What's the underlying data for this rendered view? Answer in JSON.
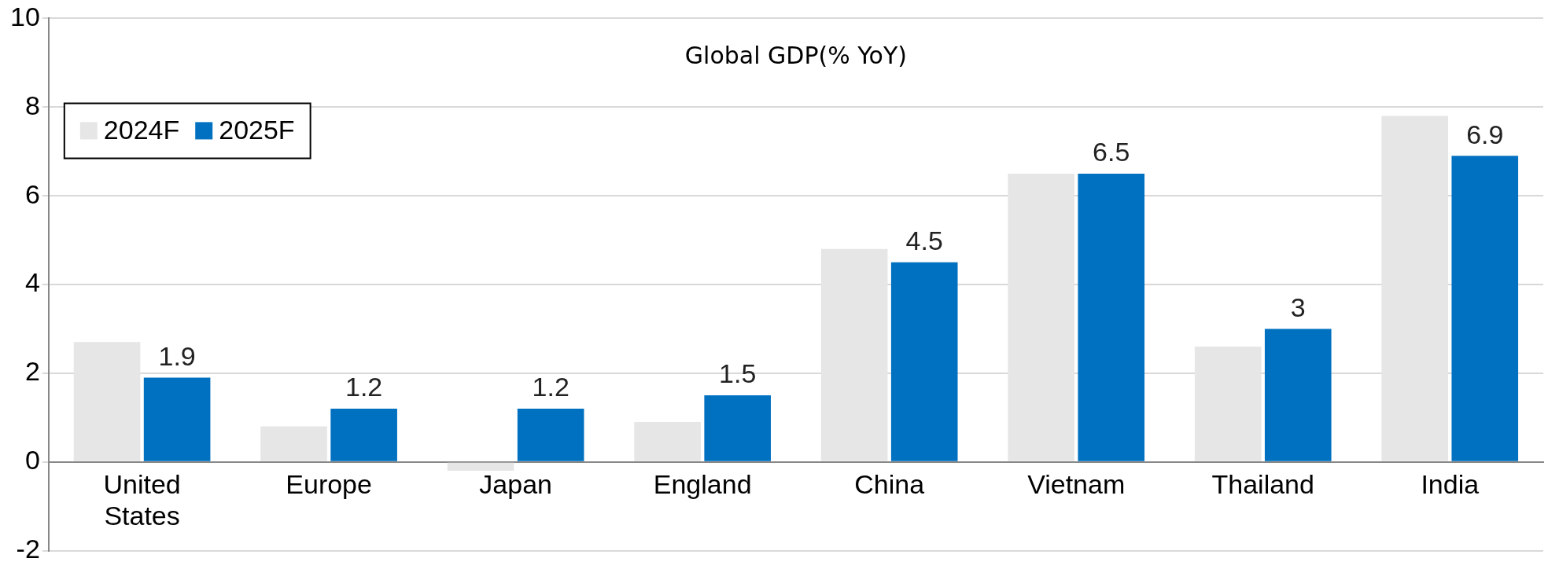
{
  "chart_data": {
    "type": "bar",
    "title": "Global GDP(% YoY)",
    "categories": [
      "United States",
      "Europe",
      "Japan",
      "England",
      "China",
      "Vietnam",
      "Thailand",
      "India"
    ],
    "series": [
      {
        "name": "2024F",
        "color": "#e6e6e6",
        "values": [
          2.7,
          0.8,
          -0.2,
          0.9,
          4.8,
          6.5,
          2.6,
          7.8
        ]
      },
      {
        "name": "2025F",
        "color": "#0070c0",
        "values": [
          1.9,
          1.2,
          1.2,
          1.5,
          4.5,
          6.5,
          3,
          6.9
        ],
        "value_labels": [
          "1.9",
          "1.2",
          "1.2",
          "1.5",
          "4.5",
          "6.5",
          "3",
          "6.9"
        ]
      }
    ],
    "ylim": [
      -2,
      10
    ],
    "yticks": [
      -2,
      0,
      2,
      4,
      6,
      8,
      10
    ],
    "grid": "y",
    "legend": "top left"
  }
}
